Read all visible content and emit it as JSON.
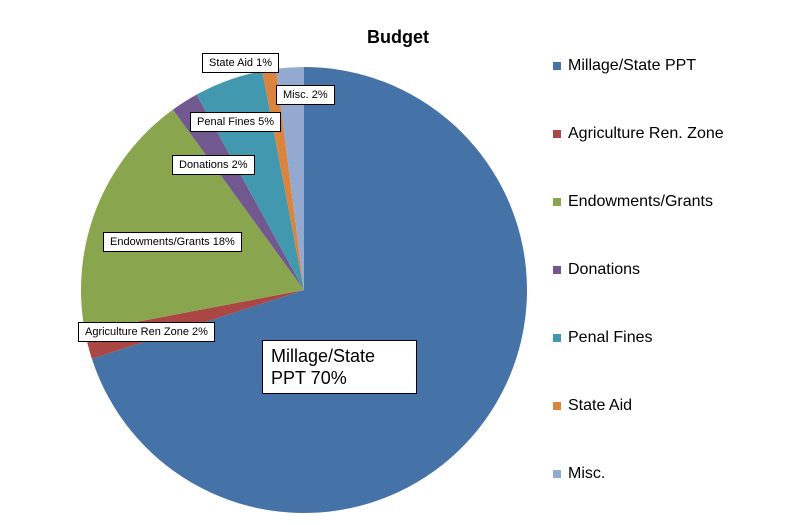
{
  "chart_data": {
    "type": "pie",
    "title": "Budget",
    "categories": [
      "Millage/State PPT",
      "Agriculture Ren. Zone",
      "Endowments/Grants",
      "Donations",
      "Penal Fines",
      "State Aid",
      "Misc."
    ],
    "values": [
      70,
      2,
      18,
      2,
      5,
      1,
      2
    ],
    "value_labels": [
      "Millage/State PPT 70%",
      "Agriculture Ren Zone 2%",
      "Endowments/Grants 18%",
      "Donations 2%",
      "Penal Fines 5%",
      "State Aid 1%",
      "Misc. 2%"
    ],
    "colors": [
      "#4572a7",
      "#aa4643",
      "#89a54e",
      "#71588f",
      "#4198af",
      "#db843d",
      "#93a9cf"
    ],
    "legend": "right"
  }
}
